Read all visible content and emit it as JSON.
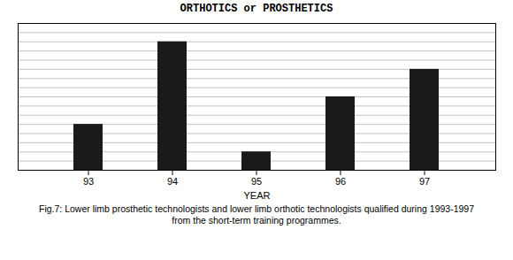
{
  "chart_data": {
    "type": "bar",
    "title": "ORTHOTICS or PROSTHETICS",
    "categories": [
      "93",
      "94",
      "95",
      "96",
      "97"
    ],
    "values": [
      5,
      14,
      2,
      8,
      11
    ],
    "color": "#1a1a1a",
    "xlabel": "YEAR",
    "ylim": [
      0,
      16
    ],
    "yticks": [
      0,
      1,
      2,
      3,
      4,
      5,
      6,
      7,
      8,
      9,
      10,
      11,
      12,
      13,
      14,
      15,
      16
    ],
    "grid": true,
    "tick_labels": "x",
    "caption": [
      "Fig.7: Lower limb prosthetic technologists and lower limb orthotic technologists qualified during 1993-1997",
      "from the short-term training programmes."
    ]
  }
}
